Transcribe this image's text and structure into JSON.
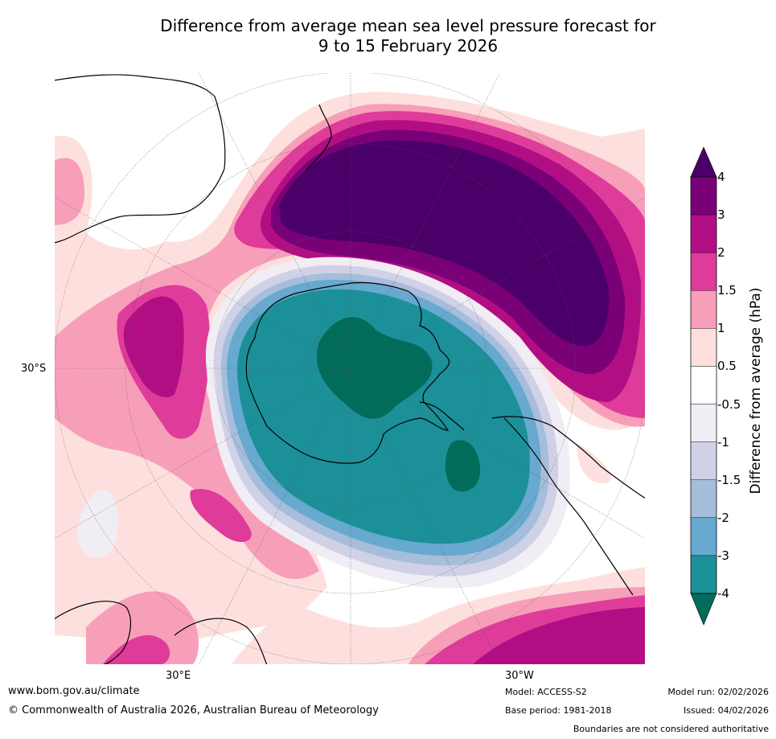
{
  "title": {
    "line1": "Difference from average mean sea level pressure forecast for",
    "line2": "9 to 15 February 2026"
  },
  "map": {
    "projection": "south-polar-stereographic",
    "lat_label": "30°S",
    "lon_labels": [
      "30°E",
      "30°W"
    ],
    "ocean_color": "#ffffff",
    "coast_color": "#000000"
  },
  "colorbar": {
    "title": "Difference from average (hPa)",
    "ticks": [
      "4",
      "3",
      "2",
      "1.5",
      "1",
      "0.5",
      "-0.5",
      "-1",
      "-1.5",
      "-2",
      "-3",
      "-4"
    ],
    "bins": [
      {
        "range": "> 4",
        "color": "#4a0068"
      },
      {
        "range": "3 to 4",
        "color": "#7a0078"
      },
      {
        "range": "2 to 3",
        "color": "#b20e84"
      },
      {
        "range": "1.5 to 2",
        "color": "#df3b9a"
      },
      {
        "range": "1 to 1.5",
        "color": "#f79fb9"
      },
      {
        "range": "0.5 to 1",
        "color": "#fde0dd"
      },
      {
        "range": "-0.5 to 0.5",
        "color": "#ffffff"
      },
      {
        "range": "-1 to -0.5",
        "color": "#f1edf4"
      },
      {
        "range": "-1.5 to -1",
        "color": "#d0d1e6"
      },
      {
        "range": "-2 to -1.5",
        "color": "#a6bddb"
      },
      {
        "range": "-3 to -2",
        "color": "#67a9cf"
      },
      {
        "range": "-4 to -3",
        "color": "#1c9099"
      },
      {
        "range": "< -4",
        "color": "#016c59"
      }
    ]
  },
  "footer": {
    "url": "www.bom.gov.au/climate",
    "copyright": "© Commonwealth of Australia 2026, Australian Bureau of Meteorology",
    "model": "Model: ACCESS-S2",
    "base_period": "Base period: 1981-2018",
    "model_run": "Model run: 02/02/2026",
    "issued": "Issued: 04/02/2026",
    "disclaimer": "Boundaries are not considered authoritative"
  }
}
